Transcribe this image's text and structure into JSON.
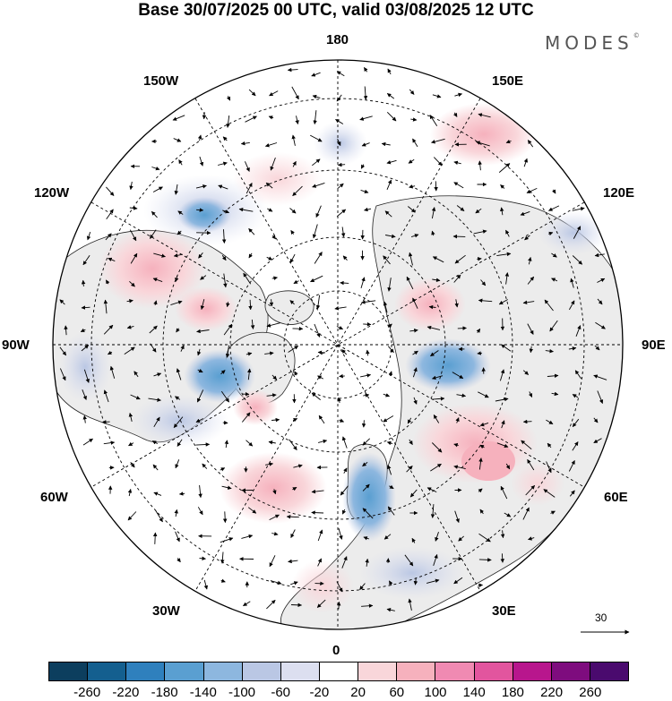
{
  "header": {
    "title": "Base 30/07/2025 00 UTC, valid 03/08/2025 12 UTC",
    "brand": "MODES",
    "brand_mark": "©"
  },
  "map": {
    "projection": "north polar stereographic",
    "longitude_labels": [
      "180",
      "150E",
      "120E",
      "90E",
      "60E",
      "30E",
      "0",
      "30W",
      "60W",
      "90W",
      "120W",
      "150W"
    ],
    "reference_vector_label": "30"
  },
  "colorbar": {
    "ticks": [
      "-260",
      "-220",
      "-180",
      "-140",
      "-100",
      "-60",
      "-20",
      "20",
      "60",
      "100",
      "140",
      "180",
      "220",
      "260"
    ],
    "colors": [
      "#0c3e5e",
      "#145f8f",
      "#2f80bd",
      "#5a9fd1",
      "#8db7df",
      "#bac7e4",
      "#dcdff0",
      "#ffffff",
      "#f9d6da",
      "#f6b1bd",
      "#f08ab2",
      "#e2559e",
      "#b8168d",
      "#7e0c7e",
      "#4a0a6e"
    ]
  }
}
